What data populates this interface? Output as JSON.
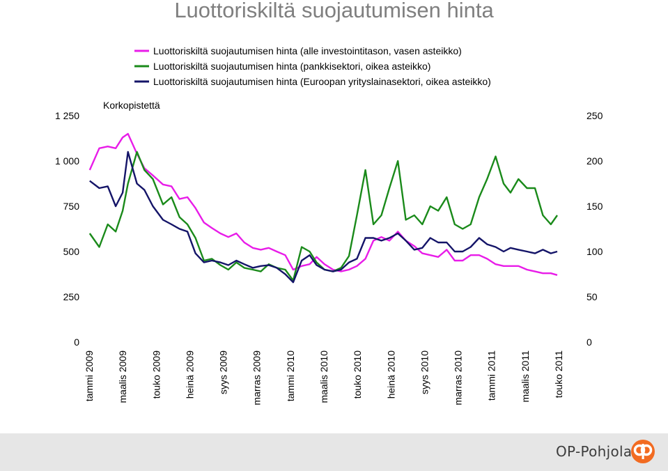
{
  "title": "Luottoriskiltä suojautumisen hinta",
  "chart_data": {
    "type": "line",
    "title": "Luottoriskiltä suojautumisen hinta",
    "ylabel": "Korkopistettä",
    "left_axis": {
      "min": 0,
      "max": 1250,
      "ticks": [
        "0",
        "250",
        "500",
        "750",
        "1 000",
        "1 250"
      ],
      "tick_values": [
        0,
        250,
        500,
        750,
        1000,
        1250
      ]
    },
    "right_axis": {
      "min": 0,
      "max": 250,
      "ticks": [
        "0",
        "50",
        "100",
        "150",
        "200",
        "250"
      ],
      "tick_values": [
        0,
        50,
        100,
        150,
        200,
        250
      ]
    },
    "x_ticks": [
      "tammi 2009",
      "maalis 2009",
      "touko 2009",
      "heinä 2009",
      "syys 2009",
      "marras 2009",
      "tammi 2010",
      "maalis 2010",
      "touko 2010",
      "heinä 2010",
      "syys 2010",
      "marras 2010",
      "tammi 2011",
      "maalis 2011",
      "touko 2011"
    ],
    "x_start": "2009-01",
    "x_end": "2011-06",
    "legend_position": "top",
    "grid": false,
    "series": [
      {
        "name": "Luottoriskiltä suojautumisen hinta (alle investointitason, vasen asteikko)",
        "color": "#e81ce8",
        "axis": "left",
        "x": [
          "2009-01-02",
          "2009-01-20",
          "2009-02-05",
          "2009-02-20",
          "2009-03-05",
          "2009-03-15",
          "2009-04-01",
          "2009-04-15",
          "2009-05-01",
          "2009-05-20",
          "2009-06-05",
          "2009-06-20",
          "2009-07-05",
          "2009-07-20",
          "2009-08-05",
          "2009-08-20",
          "2009-09-05",
          "2009-09-20",
          "2009-10-05",
          "2009-10-20",
          "2009-11-05",
          "2009-11-20",
          "2009-12-05",
          "2009-12-20",
          "2010-01-05",
          "2010-01-20",
          "2010-02-05",
          "2010-02-20",
          "2010-03-05",
          "2010-03-20",
          "2010-04-05",
          "2010-04-20",
          "2010-05-05",
          "2010-05-20",
          "2010-06-05",
          "2010-06-20",
          "2010-07-05",
          "2010-07-20",
          "2010-08-05",
          "2010-08-20",
          "2010-09-05",
          "2010-09-20",
          "2010-10-05",
          "2010-10-20",
          "2010-11-05",
          "2010-11-20",
          "2010-12-05",
          "2010-12-20",
          "2011-01-05",
          "2011-01-20",
          "2011-02-05",
          "2011-02-20",
          "2011-03-05",
          "2011-03-20",
          "2011-04-05",
          "2011-04-20",
          "2011-05-05",
          "2011-05-20",
          "2011-06-01"
        ],
        "values": [
          950,
          1070,
          1080,
          1070,
          1130,
          1150,
          1040,
          960,
          920,
          870,
          860,
          790,
          800,
          740,
          660,
          630,
          600,
          580,
          600,
          550,
          520,
          510,
          520,
          500,
          480,
          400,
          420,
          430,
          470,
          430,
          400,
          390,
          400,
          420,
          460,
          560,
          580,
          560,
          610,
          560,
          530,
          490,
          480,
          470,
          510,
          450,
          450,
          480,
          480,
          460,
          430,
          420,
          420,
          420,
          400,
          390,
          380,
          380,
          370
        ]
      },
      {
        "name": "Luottoriskiltä suojautumisen hinta (pankkisektori, oikea asteikko)",
        "color": "#1a8a1a",
        "axis": "right",
        "x": [
          "2009-01-02",
          "2009-01-20",
          "2009-02-05",
          "2009-02-20",
          "2009-03-05",
          "2009-03-15",
          "2009-04-01",
          "2009-04-15",
          "2009-05-01",
          "2009-05-20",
          "2009-06-05",
          "2009-06-20",
          "2009-07-05",
          "2009-07-20",
          "2009-08-05",
          "2009-08-20",
          "2009-09-05",
          "2009-09-20",
          "2009-10-05",
          "2009-10-20",
          "2009-11-05",
          "2009-11-20",
          "2009-12-05",
          "2009-12-20",
          "2010-01-05",
          "2010-01-20",
          "2010-02-05",
          "2010-02-20",
          "2010-03-05",
          "2010-03-20",
          "2010-04-05",
          "2010-04-20",
          "2010-05-05",
          "2010-05-20",
          "2010-06-05",
          "2010-06-20",
          "2010-07-05",
          "2010-07-20",
          "2010-08-05",
          "2010-08-20",
          "2010-09-05",
          "2010-09-20",
          "2010-10-05",
          "2010-10-20",
          "2010-11-05",
          "2010-11-20",
          "2010-12-05",
          "2010-12-20",
          "2011-01-05",
          "2011-01-20",
          "2011-02-05",
          "2011-02-20",
          "2011-03-05",
          "2011-03-20",
          "2011-04-05",
          "2011-04-20",
          "2011-05-05",
          "2011-05-20",
          "2011-06-01"
        ],
        "values": [
          120,
          105,
          130,
          122,
          145,
          175,
          210,
          190,
          180,
          152,
          160,
          138,
          130,
          115,
          90,
          92,
          85,
          80,
          88,
          82,
          80,
          78,
          86,
          82,
          80,
          68,
          105,
          100,
          88,
          80,
          78,
          82,
          95,
          140,
          190,
          130,
          140,
          170,
          200,
          135,
          140,
          130,
          150,
          145,
          160,
          130,
          125,
          130,
          160,
          180,
          205,
          175,
          165,
          180,
          170,
          170,
          140,
          130,
          140
        ]
      },
      {
        "name": "Luottoriskiltä suojautumisen hinta (Euroopan yrityslainasektori, oikea asteikko)",
        "color": "#141468",
        "axis": "right",
        "x": [
          "2009-01-02",
          "2009-01-20",
          "2009-02-05",
          "2009-02-20",
          "2009-03-05",
          "2009-03-15",
          "2009-04-01",
          "2009-04-15",
          "2009-05-01",
          "2009-05-20",
          "2009-06-05",
          "2009-06-20",
          "2009-07-05",
          "2009-07-20",
          "2009-08-05",
          "2009-08-20",
          "2009-09-05",
          "2009-09-20",
          "2009-10-05",
          "2009-10-20",
          "2009-11-05",
          "2009-11-20",
          "2009-12-05",
          "2009-12-20",
          "2010-01-05",
          "2010-01-20",
          "2010-02-05",
          "2010-02-20",
          "2010-03-05",
          "2010-03-20",
          "2010-04-05",
          "2010-04-20",
          "2010-05-05",
          "2010-05-20",
          "2010-06-05",
          "2010-06-20",
          "2010-07-05",
          "2010-07-20",
          "2010-08-05",
          "2010-08-20",
          "2010-09-05",
          "2010-09-20",
          "2010-10-05",
          "2010-10-20",
          "2010-11-05",
          "2010-11-20",
          "2010-12-05",
          "2010-12-20",
          "2011-01-05",
          "2011-01-20",
          "2011-02-05",
          "2011-02-20",
          "2011-03-05",
          "2011-03-20",
          "2011-04-05",
          "2011-04-20",
          "2011-05-05",
          "2011-05-20",
          "2011-06-01"
        ],
        "values": [
          178,
          170,
          172,
          150,
          165,
          210,
          175,
          168,
          150,
          135,
          130,
          125,
          122,
          98,
          88,
          90,
          88,
          85,
          90,
          86,
          82,
          84,
          85,
          82,
          75,
          66,
          90,
          96,
          85,
          80,
          78,
          80,
          88,
          92,
          115,
          115,
          112,
          115,
          120,
          112,
          102,
          104,
          115,
          110,
          110,
          100,
          100,
          105,
          115,
          108,
          105,
          100,
          104,
          102,
          100,
          98,
          102,
          98,
          100
        ]
      }
    ]
  }
}
